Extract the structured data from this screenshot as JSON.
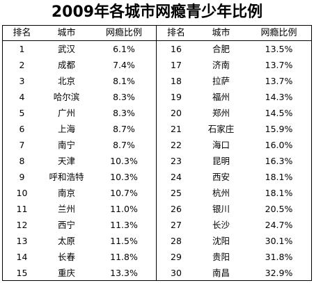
{
  "title": "2009年各城市网瘾青少年比例",
  "headers": {
    "rank": "排名",
    "city": "城市",
    "pct": "网瘾比例"
  },
  "chart_data": {
    "type": "table",
    "title": "2009年各城市网瘾青少年比例",
    "columns": [
      "排名",
      "城市",
      "网瘾比例"
    ],
    "rows": [
      {
        "rank": "1",
        "city": "武汉",
        "pct": "6.1%"
      },
      {
        "rank": "2",
        "city": "成都",
        "pct": "7.4%"
      },
      {
        "rank": "3",
        "city": "北京",
        "pct": "8.1%"
      },
      {
        "rank": "4",
        "city": "哈尔滨",
        "pct": "8.3%"
      },
      {
        "rank": "5",
        "city": "广州",
        "pct": "8.3%"
      },
      {
        "rank": "6",
        "city": "上海",
        "pct": "8.7%"
      },
      {
        "rank": "7",
        "city": "南宁",
        "pct": "8.7%"
      },
      {
        "rank": "8",
        "city": "天津",
        "pct": "10.3%"
      },
      {
        "rank": "9",
        "city": "呼和浩特",
        "pct": "10.3%"
      },
      {
        "rank": "10",
        "city": "南京",
        "pct": "10.7%"
      },
      {
        "rank": "11",
        "city": "兰州",
        "pct": "11.0%"
      },
      {
        "rank": "12",
        "city": "西宁",
        "pct": "11.3%"
      },
      {
        "rank": "13",
        "city": "太原",
        "pct": "11.5%"
      },
      {
        "rank": "14",
        "city": "长春",
        "pct": "11.8%"
      },
      {
        "rank": "15",
        "city": "重庆",
        "pct": "13.3%"
      },
      {
        "rank": "16",
        "city": "合肥",
        "pct": "13.5%"
      },
      {
        "rank": "17",
        "city": "济南",
        "pct": "13.7%"
      },
      {
        "rank": "18",
        "city": "拉萨",
        "pct": "13.7%"
      },
      {
        "rank": "19",
        "city": "福州",
        "pct": "14.3%"
      },
      {
        "rank": "20",
        "city": "郑州",
        "pct": "14.5%"
      },
      {
        "rank": "21",
        "city": "石家庄",
        "pct": "15.9%"
      },
      {
        "rank": "22",
        "city": "海口",
        "pct": "16.0%"
      },
      {
        "rank": "23",
        "city": "昆明",
        "pct": "16.3%"
      },
      {
        "rank": "24",
        "city": "西安",
        "pct": "18.1%"
      },
      {
        "rank": "25",
        "city": "杭州",
        "pct": "18.1%"
      },
      {
        "rank": "26",
        "city": "银川",
        "pct": "20.5%"
      },
      {
        "rank": "27",
        "city": "长沙",
        "pct": "24.7%"
      },
      {
        "rank": "28",
        "city": "沈阳",
        "pct": "30.1%"
      },
      {
        "rank": "29",
        "city": "贵阳",
        "pct": "31.8%"
      },
      {
        "rank": "30",
        "city": "南昌",
        "pct": "32.9%"
      }
    ]
  }
}
